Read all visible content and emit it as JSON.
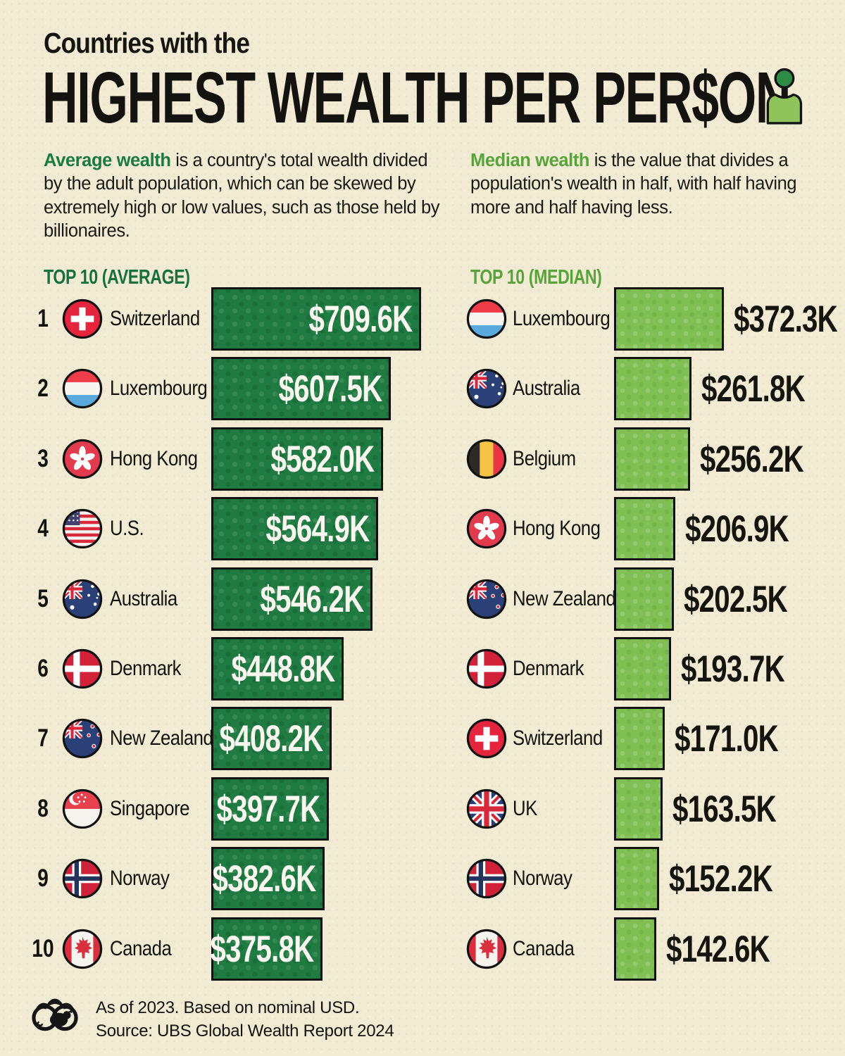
{
  "header": {
    "kicker": "Countries with the",
    "title": "HIGHEST WEALTH PER PER$ON",
    "person_icon": "person-icon"
  },
  "intro": {
    "average": {
      "lead": "Average wealth",
      "rest": " is a country's total wealth divided by the adult population, which can be skewed by extremely high or low values, such as those held by billionaires."
    },
    "median": {
      "lead": "Median wealth",
      "rest": " is the value that divides a population's wealth in half, with half having more and half having less."
    }
  },
  "charts": {
    "average": {
      "heading": "TOP 10 (AVERAGE)",
      "rows": [
        {
          "rank": "1",
          "country": "Switzerland",
          "flag_icon": "flag-switzerland",
          "value_label": "$709.6K",
          "value_k": 709.6
        },
        {
          "rank": "2",
          "country": "Luxembourg",
          "flag_icon": "flag-luxembourg",
          "value_label": "$607.5K",
          "value_k": 607.5
        },
        {
          "rank": "3",
          "country": "Hong Kong",
          "flag_icon": "flag-hongkong",
          "value_label": "$582.0K",
          "value_k": 582.0
        },
        {
          "rank": "4",
          "country": "U.S.",
          "flag_icon": "flag-us",
          "value_label": "$564.9K",
          "value_k": 564.9
        },
        {
          "rank": "5",
          "country": "Australia",
          "flag_icon": "flag-australia",
          "value_label": "$546.2K",
          "value_k": 546.2
        },
        {
          "rank": "6",
          "country": "Denmark",
          "flag_icon": "flag-denmark",
          "value_label": "$448.8K",
          "value_k": 448.8
        },
        {
          "rank": "7",
          "country": "New Zealand",
          "flag_icon": "flag-newzealand",
          "value_label": "$408.2K",
          "value_k": 408.2
        },
        {
          "rank": "8",
          "country": "Singapore",
          "flag_icon": "flag-singapore",
          "value_label": "$397.7K",
          "value_k": 397.7
        },
        {
          "rank": "9",
          "country": "Norway",
          "flag_icon": "flag-norway",
          "value_label": "$382.6K",
          "value_k": 382.6
        },
        {
          "rank": "10",
          "country": "Canada",
          "flag_icon": "flag-canada",
          "value_label": "$375.8K",
          "value_k": 375.8
        }
      ]
    },
    "median": {
      "heading": "TOP 10 (MEDIAN)",
      "rows": [
        {
          "country": "Luxembourg",
          "flag_icon": "flag-luxembourg",
          "value_label": "$372.3K",
          "value_k": 372.3
        },
        {
          "country": "Australia",
          "flag_icon": "flag-australia",
          "value_label": "$261.8K",
          "value_k": 261.8
        },
        {
          "country": "Belgium",
          "flag_icon": "flag-belgium",
          "value_label": "$256.2K",
          "value_k": 256.2
        },
        {
          "country": "Hong Kong",
          "flag_icon": "flag-hongkong",
          "value_label": "$206.9K",
          "value_k": 206.9
        },
        {
          "country": "New Zealand",
          "flag_icon": "flag-newzealand",
          "value_label": "$202.5K",
          "value_k": 202.5
        },
        {
          "country": "Denmark",
          "flag_icon": "flag-denmark",
          "value_label": "$193.7K",
          "value_k": 193.7
        },
        {
          "country": "Switzerland",
          "flag_icon": "flag-switzerland",
          "value_label": "$171.0K",
          "value_k": 171.0
        },
        {
          "country": "UK",
          "flag_icon": "flag-uk",
          "value_label": "$163.5K",
          "value_k": 163.5
        },
        {
          "country": "Norway",
          "flag_icon": "flag-norway",
          "value_label": "$152.2K",
          "value_k": 152.2
        },
        {
          "country": "Canada",
          "flag_icon": "flag-canada",
          "value_label": "$142.6K",
          "value_k": 142.6
        }
      ]
    }
  },
  "footer": {
    "note": "As of 2023. Based on nominal USD.",
    "source": "Source: UBS Global Wealth Report 2024",
    "logo_icon": "visual-capitalist-logo"
  },
  "colors": {
    "background": "#f1ebd4",
    "average_green": "#1f7b42",
    "median_green": "#80bf53",
    "average_text_green": "#1b7a40",
    "median_text_green": "#58a33a",
    "bar_border": "#121212",
    "text_dark": "#161511",
    "value_text_light": "#f8f6ee"
  },
  "chart_data": [
    {
      "type": "bar",
      "orientation": "horizontal",
      "title": "TOP 10 (AVERAGE)",
      "unit": "USD thousands per adult",
      "categories": [
        "Switzerland",
        "Luxembourg",
        "Hong Kong",
        "U.S.",
        "Australia",
        "Denmark",
        "New Zealand",
        "Singapore",
        "Norway",
        "Canada"
      ],
      "values": [
        709.6,
        607.5,
        582.0,
        564.9,
        546.2,
        448.8,
        408.2,
        397.7,
        382.6,
        375.8
      ],
      "value_labels": [
        "$709.6K",
        "$607.5K",
        "$582.0K",
        "$564.9K",
        "$546.2K",
        "$448.8K",
        "$408.2K",
        "$397.7K",
        "$382.6K",
        "$375.8K"
      ],
      "bar_color": "#1f7b42",
      "grid": false,
      "legend": false
    },
    {
      "type": "bar",
      "orientation": "horizontal",
      "title": "TOP 10 (MEDIAN)",
      "unit": "USD thousands per adult",
      "categories": [
        "Luxembourg",
        "Australia",
        "Belgium",
        "Hong Kong",
        "New Zealand",
        "Denmark",
        "Switzerland",
        "UK",
        "Norway",
        "Canada"
      ],
      "values": [
        372.3,
        261.8,
        256.2,
        206.9,
        202.5,
        193.7,
        171.0,
        163.5,
        152.2,
        142.6
      ],
      "value_labels": [
        "$372.3K",
        "$261.8K",
        "$256.2K",
        "$206.9K",
        "$202.5K",
        "$193.7K",
        "$171.0K",
        "$163.5K",
        "$152.2K",
        "$142.6K"
      ],
      "bar_color": "#80bf53",
      "grid": false,
      "legend": false
    }
  ]
}
